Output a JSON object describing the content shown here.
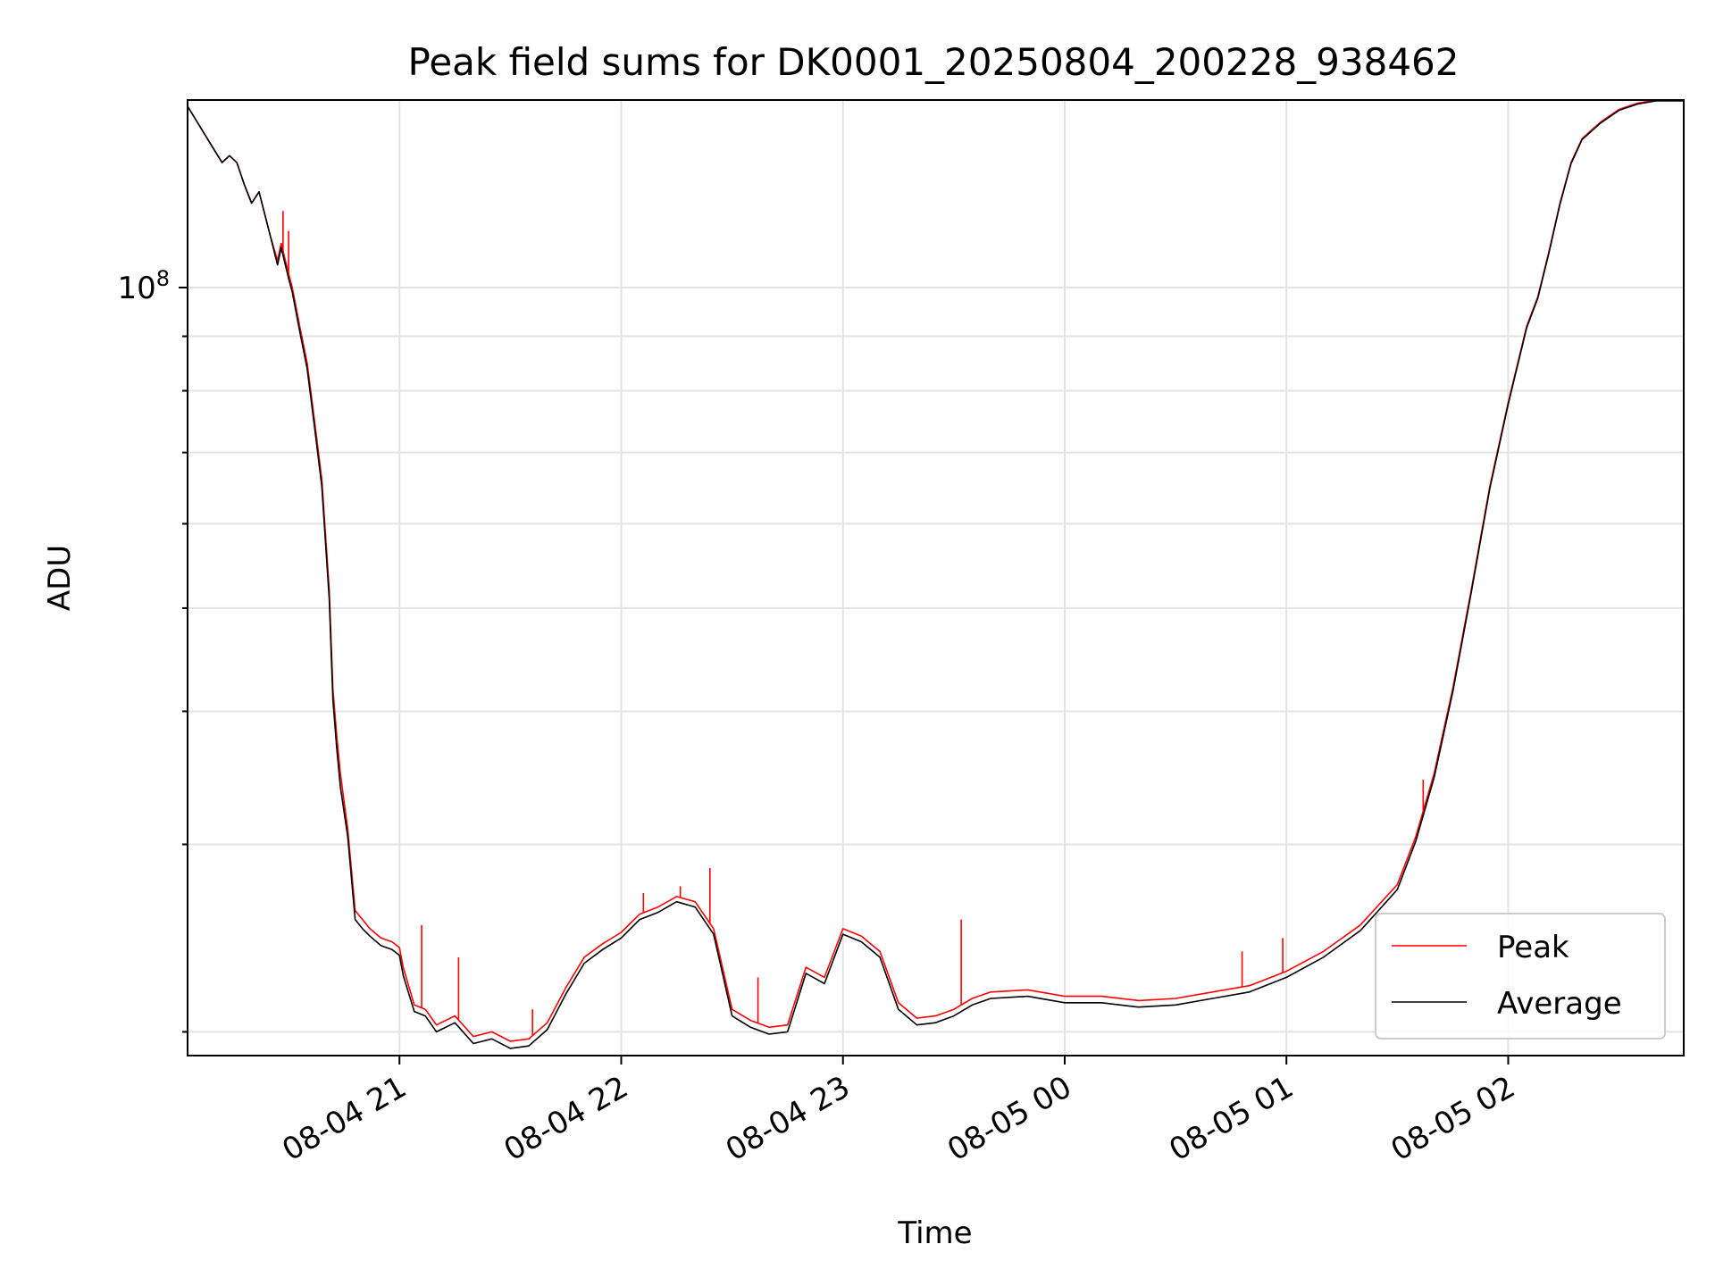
{
  "chart_data": {
    "type": "line",
    "title": "Peak field sums for DK0001_20250804_200228_938462",
    "xlabel": "Time",
    "ylabel": "ADU",
    "yscale": "log",
    "ylim": [
      19000000,
      150000000
    ],
    "xlim": [
      "2025-08-04 20:02:40",
      "2025-08-05 02:47:30"
    ],
    "grid": true,
    "legend_position": "lower-right",
    "x_ticks": [
      {
        "value": "2025-08-04 21:00",
        "label": "08-04 21"
      },
      {
        "value": "2025-08-04 22:00",
        "label": "08-04 22"
      },
      {
        "value": "2025-08-04 23:00",
        "label": "08-04 23"
      },
      {
        "value": "2025-08-05 00:00",
        "label": "08-05 00"
      },
      {
        "value": "2025-08-05 01:00",
        "label": "08-05 01"
      },
      {
        "value": "2025-08-05 02:00",
        "label": "08-05 02"
      }
    ],
    "y_ticks": [
      {
        "value": 100000000,
        "label_base": "10",
        "label_exp": "8"
      }
    ],
    "y_minor_ticks": [
      20000000,
      30000000,
      40000000,
      50000000,
      60000000,
      70000000,
      80000000,
      90000000
    ],
    "series": [
      {
        "name": "Peak",
        "color": "#ff0000",
        "x": [
          "2025-08-04 20:02:40",
          "2025-08-04 20:08:00",
          "2025-08-04 20:12:00",
          "2025-08-04 20:14:00",
          "2025-08-04 20:16:00",
          "2025-08-04 20:18:00",
          "2025-08-04 20:20:00",
          "2025-08-04 20:22:00",
          "2025-08-04 20:25:00",
          "2025-08-04 20:27:00",
          "2025-08-04 20:28:00",
          "2025-08-04 20:30:00",
          "2025-08-04 20:31:00",
          "2025-08-04 20:33:00",
          "2025-08-04 20:35:00",
          "2025-08-04 20:37:00",
          "2025-08-04 20:39:00",
          "2025-08-04 20:41:00",
          "2025-08-04 20:42:00",
          "2025-08-04 20:43:00",
          "2025-08-04 20:44:00",
          "2025-08-04 20:46:00",
          "2025-08-04 20:48:00",
          "2025-08-04 20:50:00",
          "2025-08-04 20:52:00",
          "2025-08-04 20:55:00",
          "2025-08-04 20:58:00",
          "2025-08-04 21:00:00",
          "2025-08-04 21:01:00",
          "2025-08-04 21:04:00",
          "2025-08-04 21:07:00",
          "2025-08-04 21:10:00",
          "2025-08-04 21:15:00",
          "2025-08-04 21:20:00",
          "2025-08-04 21:25:00",
          "2025-08-04 21:30:00",
          "2025-08-04 21:35:00",
          "2025-08-04 21:40:00",
          "2025-08-04 21:45:00",
          "2025-08-04 21:50:00",
          "2025-08-04 21:55:00",
          "2025-08-04 22:00:00",
          "2025-08-04 22:05:00",
          "2025-08-04 22:10:00",
          "2025-08-04 22:15:00",
          "2025-08-04 22:20:00",
          "2025-08-04 22:25:00",
          "2025-08-04 22:30:00",
          "2025-08-04 22:35:00",
          "2025-08-04 22:40:00",
          "2025-08-04 22:45:00",
          "2025-08-04 22:50:00",
          "2025-08-04 22:55:00",
          "2025-08-04 23:00:00",
          "2025-08-04 23:05:00",
          "2025-08-04 23:10:00",
          "2025-08-04 23:15:00",
          "2025-08-04 23:20:00",
          "2025-08-04 23:25:00",
          "2025-08-04 23:30:00",
          "2025-08-04 23:35:00",
          "2025-08-04 23:40:00",
          "2025-08-04 23:50:00",
          "2025-08-05 00:00:00",
          "2025-08-05 00:10:00",
          "2025-08-05 00:20:00",
          "2025-08-05 00:30:00",
          "2025-08-05 00:40:00",
          "2025-08-05 00:50:00",
          "2025-08-05 01:00:00",
          "2025-08-05 01:10:00",
          "2025-08-05 01:20:00",
          "2025-08-05 01:30:00",
          "2025-08-05 01:35:00",
          "2025-08-05 01:40:00",
          "2025-08-05 01:45:00",
          "2025-08-05 01:50:00",
          "2025-08-05 01:55:00",
          "2025-08-05 02:00:00",
          "2025-08-05 02:05:00",
          "2025-08-05 02:08:00",
          "2025-08-05 02:11:00",
          "2025-08-05 02:14:00",
          "2025-08-05 02:17:00",
          "2025-08-05 02:20:00",
          "2025-08-05 02:25:00",
          "2025-08-05 02:30:00",
          "2025-08-05 02:35:00",
          "2025-08-05 02:40:00",
          "2025-08-05 02:47:30"
        ],
        "y": [
          148000000,
          138000000,
          131000000,
          133000000,
          131000000,
          125000000,
          120000000,
          123000000,
          112000000,
          106000000,
          110000000,
          103000000,
          100000000,
          92000000,
          85000000,
          75000000,
          66000000,
          52000000,
          42000000,
          38000000,
          35000000,
          31000000,
          26000000,
          25500000,
          25000000,
          24500000,
          24300000,
          24000000,
          23000000,
          21200000,
          21000000,
          20300000,
          20700000,
          19800000,
          20000000,
          19600000,
          19700000,
          20400000,
          22000000,
          23500000,
          24200000,
          24800000,
          25800000,
          26200000,
          26800000,
          26500000,
          25000000,
          21000000,
          20500000,
          20200000,
          20300000,
          23000000,
          22500000,
          25000000,
          24600000,
          23800000,
          21300000,
          20600000,
          20700000,
          21000000,
          21500000,
          21800000,
          21900000,
          21600000,
          21600000,
          21400000,
          21500000,
          21800000,
          22100000,
          22800000,
          23800000,
          25200000,
          27500000,
          30500000,
          35000000,
          42000000,
          52000000,
          65000000,
          78000000,
          92000000,
          98000000,
          108000000,
          120000000,
          131000000,
          138000000,
          143000000,
          147000000,
          149000000,
          150000000,
          150000000
        ]
      },
      {
        "name": "Average",
        "color": "#000000",
        "x": [
          "2025-08-04 20:02:40",
          "2025-08-04 20:08:00",
          "2025-08-04 20:12:00",
          "2025-08-04 20:14:00",
          "2025-08-04 20:16:00",
          "2025-08-04 20:18:00",
          "2025-08-04 20:20:00",
          "2025-08-04 20:22:00",
          "2025-08-04 20:25:00",
          "2025-08-04 20:27:00",
          "2025-08-04 20:28:00",
          "2025-08-04 20:30:00",
          "2025-08-04 20:31:00",
          "2025-08-04 20:33:00",
          "2025-08-04 20:35:00",
          "2025-08-04 20:37:00",
          "2025-08-04 20:39:00",
          "2025-08-04 20:41:00",
          "2025-08-04 20:42:00",
          "2025-08-04 20:43:00",
          "2025-08-04 20:44:00",
          "2025-08-04 20:46:00",
          "2025-08-04 20:48:00",
          "2025-08-04 20:50:00",
          "2025-08-04 20:52:00",
          "2025-08-04 20:55:00",
          "2025-08-04 20:58:00",
          "2025-08-04 21:00:00",
          "2025-08-04 21:01:00",
          "2025-08-04 21:04:00",
          "2025-08-04 21:07:00",
          "2025-08-04 21:10:00",
          "2025-08-04 21:15:00",
          "2025-08-04 21:20:00",
          "2025-08-04 21:25:00",
          "2025-08-04 21:30:00",
          "2025-08-04 21:35:00",
          "2025-08-04 21:40:00",
          "2025-08-04 21:45:00",
          "2025-08-04 21:50:00",
          "2025-08-04 21:55:00",
          "2025-08-04 22:00:00",
          "2025-08-04 22:05:00",
          "2025-08-04 22:10:00",
          "2025-08-04 22:15:00",
          "2025-08-04 22:20:00",
          "2025-08-04 22:25:00",
          "2025-08-04 22:30:00",
          "2025-08-04 22:35:00",
          "2025-08-04 22:40:00",
          "2025-08-04 22:45:00",
          "2025-08-04 22:50:00",
          "2025-08-04 22:55:00",
          "2025-08-04 23:00:00",
          "2025-08-04 23:05:00",
          "2025-08-04 23:10:00",
          "2025-08-04 23:15:00",
          "2025-08-04 23:20:00",
          "2025-08-04 23:25:00",
          "2025-08-04 23:30:00",
          "2025-08-04 23:35:00",
          "2025-08-04 23:40:00",
          "2025-08-04 23:50:00",
          "2025-08-05 00:00:00",
          "2025-08-05 00:10:00",
          "2025-08-05 00:20:00",
          "2025-08-05 00:30:00",
          "2025-08-05 00:40:00",
          "2025-08-05 00:50:00",
          "2025-08-05 01:00:00",
          "2025-08-05 01:10:00",
          "2025-08-05 01:20:00",
          "2025-08-05 01:30:00",
          "2025-08-05 01:35:00",
          "2025-08-05 01:40:00",
          "2025-08-05 01:45:00",
          "2025-08-05 01:50:00",
          "2025-08-05 01:55:00",
          "2025-08-05 02:00:00",
          "2025-08-05 02:05:00",
          "2025-08-05 02:08:00",
          "2025-08-05 02:11:00",
          "2025-08-05 02:14:00",
          "2025-08-05 02:17:00",
          "2025-08-05 02:20:00",
          "2025-08-05 02:25:00",
          "2025-08-05 02:30:00",
          "2025-08-05 02:35:00",
          "2025-08-05 02:40:00",
          "2025-08-05 02:47:30"
        ],
        "y": [
          148000000,
          138000000,
          131000000,
          133000000,
          131000000,
          125000000,
          120000000,
          123000000,
          112000000,
          105000000,
          109000000,
          102000000,
          99000000,
          91000000,
          84000000,
          74000000,
          65000000,
          51000000,
          41000000,
          37000000,
          34000000,
          30500000,
          25500000,
          25000000,
          24600000,
          24100000,
          23900000,
          23600000,
          22600000,
          20900000,
          20700000,
          20000000,
          20400000,
          19500000,
          19700000,
          19300000,
          19400000,
          20100000,
          21700000,
          23200000,
          23900000,
          24500000,
          25500000,
          25900000,
          26500000,
          26200000,
          24700000,
          20700000,
          20200000,
          19900000,
          20000000,
          22700000,
          22200000,
          24700000,
          24300000,
          23500000,
          21000000,
          20300000,
          20400000,
          20700000,
          21200000,
          21500000,
          21600000,
          21300000,
          21300000,
          21100000,
          21200000,
          21500000,
          21800000,
          22500000,
          23500000,
          24900000,
          27200000,
          30200000,
          34700000,
          41700000,
          51700000,
          64700000,
          77700000,
          91700000,
          97700000,
          107700000,
          119700000,
          130700000,
          137700000,
          142700000,
          146700000,
          148700000,
          149700000,
          149700000
        ]
      }
    ],
    "spikes": {
      "series": "Peak",
      "points": [
        {
          "x": "2025-08-04 20:28:30",
          "y": 118000000
        },
        {
          "x": "2025-08-04 20:30:00",
          "y": 113000000
        },
        {
          "x": "2025-08-04 21:06:00",
          "y": 25200000
        },
        {
          "x": "2025-08-04 21:16:00",
          "y": 23500000
        },
        {
          "x": "2025-08-04 21:36:00",
          "y": 21000000
        },
        {
          "x": "2025-08-04 22:06:00",
          "y": 27000000
        },
        {
          "x": "2025-08-04 22:16:00",
          "y": 27400000
        },
        {
          "x": "2025-08-04 22:24:00",
          "y": 28500000
        },
        {
          "x": "2025-08-04 22:37:00",
          "y": 22500000
        },
        {
          "x": "2025-08-04 23:32:00",
          "y": 25500000
        },
        {
          "x": "2025-08-05 00:48:00",
          "y": 23800000
        },
        {
          "x": "2025-08-05 00:59:00",
          "y": 24500000
        },
        {
          "x": "2025-08-05 01:37:00",
          "y": 34500000
        }
      ]
    }
  }
}
